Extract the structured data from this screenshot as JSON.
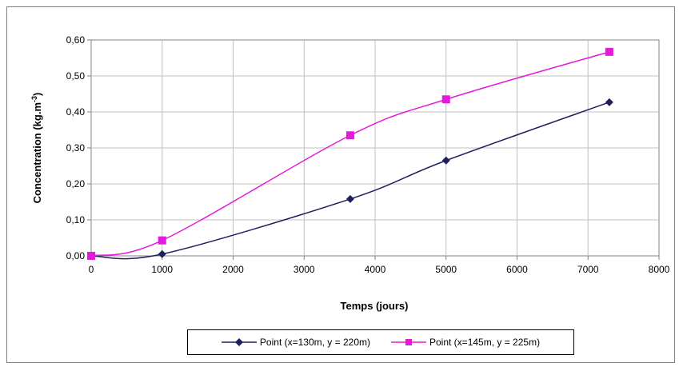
{
  "chart_data": {
    "type": "line",
    "title": "",
    "xlabel": "Temps (jours)",
    "ylabel": "Concentration (kg.m-3)",
    "ylabel_main": "Concentration (kg.m",
    "ylabel_sup": "-3",
    "ylabel_close": ")",
    "xlim": [
      0,
      8000
    ],
    "ylim": [
      0,
      0.6
    ],
    "x_ticks": [
      0,
      1000,
      2000,
      3000,
      4000,
      5000,
      6000,
      7000,
      8000
    ],
    "x_tick_labels": [
      "0",
      "1000",
      "2000",
      "3000",
      "4000",
      "5000",
      "6000",
      "7000",
      "8000"
    ],
    "y_ticks": [
      0,
      0.1,
      0.2,
      0.3,
      0.4,
      0.5,
      0.6
    ],
    "y_tick_labels": [
      "0,00",
      "0,10",
      "0,20",
      "0,30",
      "0,40",
      "0,50",
      "0,60"
    ],
    "grid": true,
    "legend_position": "bottom",
    "series": [
      {
        "name": "Point (x=130m, y = 220m)",
        "color": "#1f1f5f",
        "marker": "diamond",
        "x": [
          0,
          1000,
          3650,
          5000,
          7300
        ],
        "y": [
          0.0,
          0.005,
          0.158,
          0.265,
          0.427
        ]
      },
      {
        "name": "Point (x=145m, y = 225m)",
        "color": "#e31ad9",
        "marker": "square",
        "x": [
          0,
          1000,
          3650,
          5000,
          7300
        ],
        "y": [
          0.0,
          0.043,
          0.335,
          0.435,
          0.567
        ]
      }
    ]
  }
}
